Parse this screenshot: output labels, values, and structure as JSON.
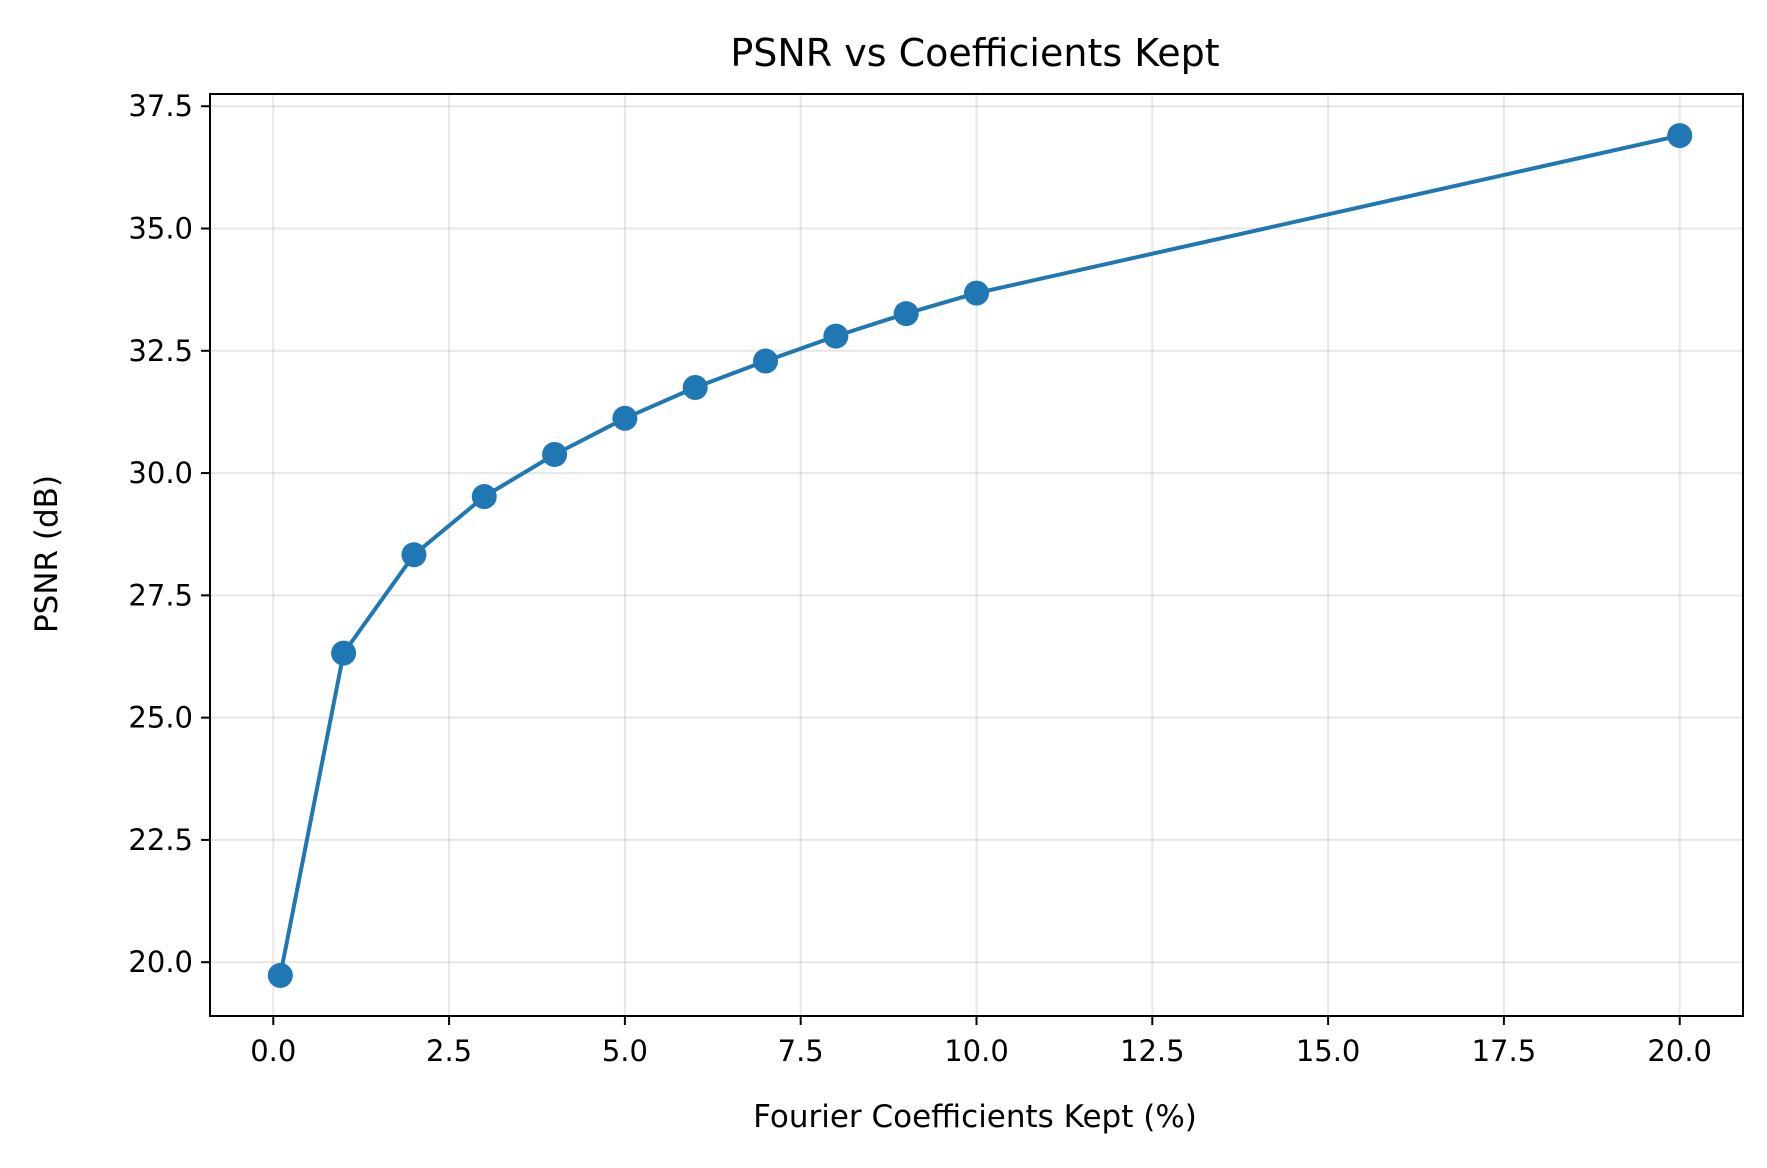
{
  "chart_data": {
    "type": "line",
    "title": "PSNR vs Coefficients Kept",
    "xlabel": "Fourier Coefficients Kept (%)",
    "ylabel": "PSNR (dB)",
    "xlim": [
      -0.9,
      20.9
    ],
    "ylim": [
      18.9,
      37.75
    ],
    "xticks": [
      0.0,
      2.5,
      5.0,
      7.5,
      10.0,
      12.5,
      15.0,
      17.5,
      20.0
    ],
    "yticks": [
      20.0,
      22.5,
      25.0,
      27.5,
      30.0,
      32.5,
      35.0,
      37.5
    ],
    "xtick_labels": [
      "0.0",
      "2.5",
      "5.0",
      "7.5",
      "10.0",
      "12.5",
      "15.0",
      "17.5",
      "20.0"
    ],
    "ytick_labels": [
      "20.0",
      "22.5",
      "25.0",
      "27.5",
      "30.0",
      "32.5",
      "35.0",
      "37.5"
    ],
    "grid": true,
    "series": [
      {
        "color": "#1f77b4",
        "marker": "circle",
        "x": [
          0.1,
          1,
          2,
          3,
          4,
          5,
          6,
          7,
          8,
          9,
          10,
          20
        ],
        "y": [
          19.73,
          26.32,
          28.33,
          29.52,
          30.38,
          31.12,
          31.75,
          32.29,
          32.8,
          33.26,
          33.68,
          36.9
        ]
      }
    ]
  }
}
